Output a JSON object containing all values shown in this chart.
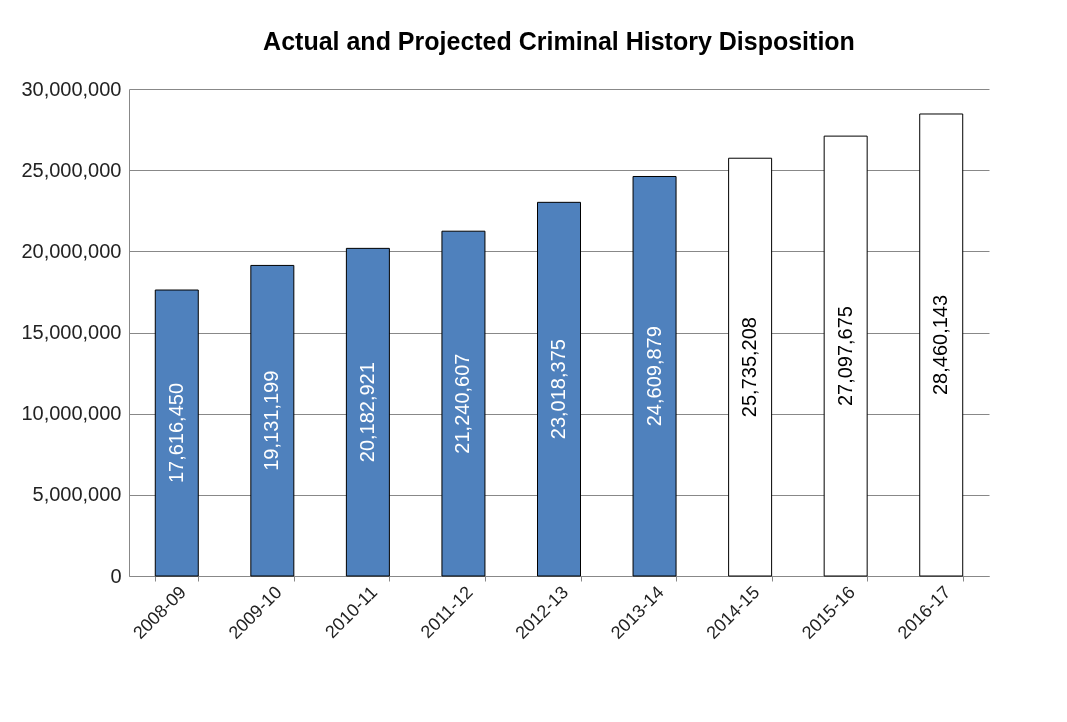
{
  "chart_data": {
    "type": "bar",
    "title": "Actual and Projected Criminal History Disposition",
    "categories": [
      "2008-09",
      "2009-10",
      "2010-11",
      "2011-12",
      "2012-13",
      "2013-14",
      "2014-15",
      "2015-16",
      "2016-17"
    ],
    "values": [
      17616450,
      19131199,
      20182921,
      21240607,
      23018375,
      24609879,
      25735208,
      27097675,
      28460143
    ],
    "value_labels": [
      "17,616,450",
      "19,131,199",
      "20,182,921",
      "21,240,607",
      "23,018,375",
      "24,609,879",
      "25,735,208",
      "27,097,675",
      "28,460,143"
    ],
    "colors": [
      "#4f81bd",
      "#4f81bd",
      "#4f81bd",
      "#4f81bd",
      "#4f81bd",
      "#4f81bd",
      "#ffffff",
      "#ffffff",
      "#ffffff"
    ],
    "ylim": [
      0,
      30000000
    ],
    "yticks": [
      0,
      {
        "value": 5000000,
        "label": "5,000,000"
      },
      {
        "value": 10000000,
        "label": "10,000,000"
      },
      {
        "value": 15000000,
        "label": "15,000,000"
      },
      {
        "value": 20000000,
        "label": "20,000,000"
      },
      {
        "value": 25000000,
        "label": "25,000,000"
      },
      {
        "value": 30000000,
        "label": "30,000,000"
      }
    ],
    "grid": "y"
  }
}
